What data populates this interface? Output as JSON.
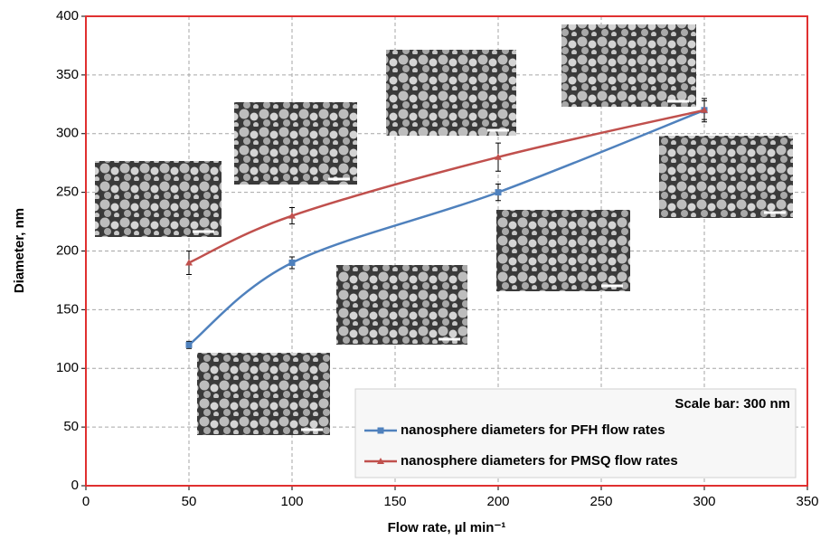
{
  "chart_data": {
    "type": "line",
    "x_label": "Flow rate, µl min⁻¹",
    "y_label": "Diameter, nm",
    "annotation": "Scale bar: 300 nm",
    "xlim": [
      0,
      350
    ],
    "xticks": [
      0,
      50,
      100,
      150,
      200,
      250,
      300,
      350
    ],
    "ylim": [
      0,
      400
    ],
    "yticks": [
      0,
      50,
      100,
      150,
      200,
      250,
      300,
      350,
      400
    ],
    "grid": true,
    "legend": "lower right",
    "series": [
      {
        "name": "nanosphere diameters for PFH flow rates",
        "color": "#4f81bd",
        "marker": "square",
        "x": [
          50,
          100,
          200,
          300
        ],
        "values": [
          120,
          190,
          250,
          320
        ],
        "errors": [
          3,
          5,
          7,
          10
        ]
      },
      {
        "name": "nanosphere diameters for PMSQ flow rates",
        "color": "#c0504d",
        "marker": "triangle",
        "x": [
          50,
          100,
          200,
          300
        ],
        "values": [
          190,
          230,
          280,
          320
        ],
        "errors": [
          10,
          7,
          12,
          8
        ]
      }
    ]
  }
}
